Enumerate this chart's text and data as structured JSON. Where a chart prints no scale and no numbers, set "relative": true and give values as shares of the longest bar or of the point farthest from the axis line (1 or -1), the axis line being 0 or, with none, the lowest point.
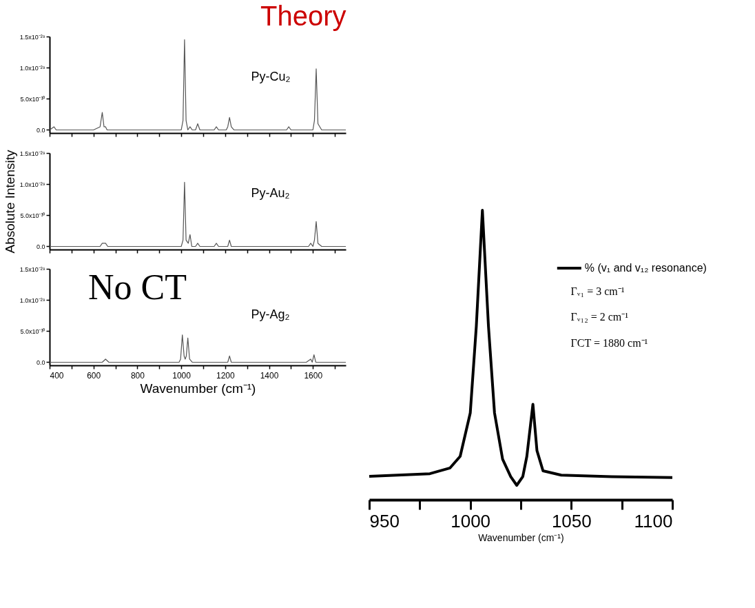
{
  "chart_data": [
    {
      "type": "line",
      "title": "Theory",
      "x": [
        400,
        420,
        430,
        600,
        630,
        640,
        648,
        655,
        662,
        680,
        1000,
        1008,
        1015,
        1022,
        1030,
        1040,
        1050,
        1065,
        1075,
        1085,
        1150,
        1160,
        1170,
        1205,
        1212,
        1220,
        1228,
        1240,
        1480,
        1490,
        1500,
        1580,
        1590,
        1600,
        1607,
        1615,
        1623,
        1640,
        1750
      ],
      "series": [
        {
          "color": "#555555",
          "values": [
            0,
            5e-31,
            0,
            0,
            5e-31,
            2.8e-30,
            5e-31,
            5e-31,
            0,
            0,
            0,
            1.5e-30,
            1.45e-29,
            1.5e-30,
            0,
            5e-31,
            0,
            0,
            1e-30,
            0,
            0,
            5e-31,
            0,
            0,
            5e-31,
            2e-30,
            5e-31,
            0,
            0,
            5e-31,
            0,
            0,
            0,
            0,
            1.5e-30,
            9.8e-30,
            1e-30,
            0,
            0
          ]
        }
      ],
      "xlim": [
        400,
        1750
      ],
      "xticks": [
        400,
        {
          "value": 500,
          "label": null
        },
        600,
        {
          "value": 700,
          "label": null
        },
        800,
        {
          "value": 900,
          "label": null
        },
        1000,
        {
          "value": 1100,
          "label": null
        },
        1200,
        {
          "value": 1300,
          "label": null
        },
        1400,
        {
          "value": 1500,
          "label": null
        },
        1600,
        {
          "value": 1700,
          "label": null
        }
      ],
      "ylim": [
        -5e-31,
        1.5e-29
      ],
      "yticks": [
        {
          "value": 0,
          "label": "0.0"
        },
        {
          "value": 5e-30,
          "label": "5.0x10⁻³⁰"
        },
        {
          "value": 1e-29,
          "label": "1.0x10⁻²⁹"
        },
        {
          "value": 1.5e-29,
          "label": "1.5x10⁻²⁹"
        }
      ],
      "tick_labels": "y",
      "annotations": [
        "Py-Cu₂"
      ]
    },
    {
      "type": "line",
      "x": [
        400,
        600,
        630,
        640,
        647,
        655,
        665,
        680,
        1000,
        1008,
        1015,
        1022,
        1032,
        1040,
        1048,
        1065,
        1075,
        1085,
        1150,
        1160,
        1170,
        1205,
        1212,
        1220,
        1228,
        1240,
        1580,
        1590,
        1600,
        1607,
        1615,
        1623,
        1640,
        1750
      ],
      "series": [
        {
          "color": "#555555",
          "values": [
            0,
            0,
            0,
            5e-31,
            5e-31,
            5e-31,
            0,
            0,
            0,
            1e-30,
            1.03e-29,
            1e-30,
            5e-31,
            1.9e-30,
            0,
            0,
            5e-31,
            0,
            0,
            5e-31,
            0,
            0,
            0,
            1e-30,
            0,
            0,
            0,
            5e-31,
            0,
            1e-30,
            4e-30,
            5e-31,
            0,
            0
          ]
        }
      ],
      "xlim": [
        400,
        1750
      ],
      "xticks": [
        400,
        {
          "value": 500,
          "label": null
        },
        600,
        {
          "value": 700,
          "label": null
        },
        800,
        {
          "value": 900,
          "label": null
        },
        1000,
        {
          "value": 1100,
          "label": null
        },
        1200,
        {
          "value": 1300,
          "label": null
        },
        1400,
        {
          "value": 1500,
          "label": null
        },
        1600,
        {
          "value": 1700,
          "label": null
        }
      ],
      "ylim": [
        -5e-31,
        1.5e-29
      ],
      "yticks": [
        {
          "value": 0,
          "label": "0.0"
        },
        {
          "value": 5e-30,
          "label": "5.0x10⁻³⁰"
        },
        {
          "value": 1e-29,
          "label": "1.0x10⁻²⁹"
        },
        {
          "value": 1.5e-29,
          "label": "1.5x10⁻²⁹"
        }
      ],
      "ylabel": "Absolute Intensity",
      "tick_labels": "y",
      "annotations": [
        "Py-Au₂"
      ]
    },
    {
      "type": "line",
      "x": [
        400,
        420,
        440,
        600,
        625,
        640,
        655,
        670,
        690,
        700,
        710,
        940,
        950,
        960,
        990,
        997,
        1005,
        1013,
        1018,
        1023,
        1030,
        1038,
        1050,
        1150,
        1157,
        1165,
        1205,
        1212,
        1220,
        1228,
        1240,
        1570,
        1590,
        1597,
        1605,
        1613,
        1630,
        1750
      ],
      "series": [
        {
          "color": "#555555",
          "values": [
            0,
            0,
            0,
            0,
            0,
            0,
            5e-31,
            0,
            0,
            0,
            0,
            0,
            0,
            0,
            0,
            5e-31,
            4.4e-30,
            1e-30,
            5e-31,
            1e-30,
            3.9e-30,
            5e-31,
            0,
            0,
            0,
            0,
            0,
            0,
            1e-30,
            0,
            0,
            0,
            5e-31,
            0,
            1.2e-30,
            0,
            0,
            0
          ]
        }
      ],
      "xlim": [
        400,
        1750
      ],
      "xticks": [
        400,
        {
          "value": 500,
          "label": null
        },
        600,
        {
          "value": 700,
          "label": null
        },
        800,
        {
          "value": 900,
          "label": null
        },
        1000,
        {
          "value": 1100,
          "label": null
        },
        1200,
        {
          "value": 1300,
          "label": null
        },
        1400,
        {
          "value": 1500,
          "label": null
        },
        1600,
        {
          "value": 1700,
          "label": null
        }
      ],
      "ylim": [
        -5e-31,
        1.5e-29
      ],
      "yticks": [
        {
          "value": 0,
          "label": "0.0"
        },
        {
          "value": 5e-30,
          "label": "5.0x10⁻³⁰"
        },
        {
          "value": 1e-29,
          "label": "1.0x10⁻²⁹"
        },
        {
          "value": 1.5e-29,
          "label": "1.5x10⁻²⁹"
        }
      ],
      "xlabel": "Wavenumber (cm⁻¹)",
      "annotations": [
        "No CT",
        "Py-Ag₂"
      ]
    },
    {
      "type": "line",
      "relative": true,
      "x": [
        950,
        980,
        990,
        995,
        1000,
        1003,
        1006,
        1009,
        1012,
        1016,
        1020,
        1023,
        1026,
        1028,
        1031,
        1033,
        1036,
        1045,
        1070,
        1100
      ],
      "series": [
        {
          "name": "% (v₁ and v₁₂  resonance)",
          "color": "#000000",
          "values": [
            0.081,
            0.09,
            0.11,
            0.15,
            0.3,
            0.6,
            1.0,
            0.6,
            0.3,
            0.14,
            0.08,
            0.05,
            0.08,
            0.15,
            0.33,
            0.17,
            0.1,
            0.085,
            0.08,
            0.077
          ]
        }
      ],
      "xlim": [
        950,
        1100
      ],
      "xticks": [
        950,
        {
          "value": 975,
          "label": null
        },
        1000,
        {
          "value": 1025,
          "label": null
        },
        1050,
        {
          "value": 1075,
          "label": null
        },
        1100
      ],
      "xlabel": "Wavenumber (cm⁻¹)",
      "legend": "top right",
      "tick_labels": "x",
      "annotations": [
        "Γᵥ₁ = 3 cm⁻¹",
        "Γᵥ₁₂ = 2 cm⁻¹",
        "ΓCT = 1880 cm⁻¹"
      ]
    }
  ]
}
